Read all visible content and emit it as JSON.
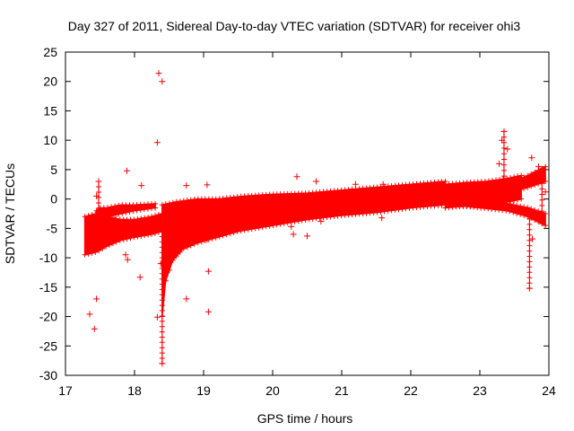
{
  "chart_data": {
    "type": "scatter",
    "title": "Day 327 of 2011, Sidereal Day-to-day VTEC variation (SDTVAR) for receiver ohi3",
    "xlabel": "GPS time / hours",
    "ylabel": "SDTVAR / TECUs",
    "xlim": [
      17,
      24
    ],
    "ylim": [
      -30,
      25
    ],
    "xticks": [
      "17",
      "18",
      "19",
      "20",
      "21",
      "22",
      "23",
      "24"
    ],
    "yticks": [
      "25",
      "20",
      "15",
      "10",
      "5",
      "0",
      "-5",
      "-10",
      "-15",
      "-20",
      "-25",
      "-30"
    ],
    "grid": false,
    "legend": "none",
    "marker": "plus",
    "color": "#ff0000",
    "series": [
      {
        "bands": [
          {
            "x": [
              17.28,
              17.45,
              17.6,
              17.8,
              18.0,
              18.25,
              18.4
            ],
            "y_low": [
              -9.5,
              -9.0,
              -8.0,
              -7.0,
              -6.5,
              -6.0,
              -5.5
            ],
            "y_high": [
              -3.0,
              -2.5,
              -3.0,
              -3.5,
              -3.5,
              -3.0,
              -2.5
            ]
          },
          {
            "x": [
              17.45,
              17.5,
              17.6,
              17.8,
              18.0,
              18.3
            ],
            "y_low": [
              -5.5,
              -3.5,
              -3.0,
              -2.5,
              -2.0,
              -1.5
            ],
            "y_high": [
              -2.0,
              -1.5,
              -1.5,
              -1.0,
              -1.0,
              -0.8
            ]
          },
          {
            "x": [
              18.4,
              18.45,
              18.55,
              18.7,
              18.9,
              19.2,
              19.5,
              20.0,
              20.5,
              21.0,
              21.5,
              22.0,
              22.5
            ],
            "y_low": [
              -20.0,
              -14.0,
              -10.5,
              -8.5,
              -7.5,
              -6.5,
              -5.5,
              -4.5,
              -3.5,
              -2.8,
              -2.3,
              -1.5,
              -1.0
            ],
            "y_high": [
              -4.0,
              -3.2,
              -2.8,
              -2.5,
              -2.2,
              -1.8,
              -1.5,
              -1.0,
              -0.5,
              0.0,
              0.5,
              1.2,
              2.0
            ]
          },
          {
            "x": [
              18.4,
              18.6,
              18.9,
              19.2,
              19.6,
              20.0,
              20.5,
              21.0,
              21.5,
              22.0,
              22.5
            ],
            "y_low": [
              -3.5,
              -3.0,
              -2.5,
              -2.0,
              -1.5,
              -1.2,
              -1.0,
              -0.5,
              0.0,
              0.5,
              1.0
            ],
            "y_high": [
              -1.0,
              -0.5,
              0.0,
              0.0,
              0.5,
              0.8,
              1.0,
              1.5,
              2.0,
              2.5,
              3.0
            ]
          },
          {
            "x": [
              22.5,
              22.8,
              23.1,
              23.4,
              23.6
            ],
            "y_low": [
              -1.5,
              -1.2,
              -1.0,
              -0.5,
              0.0
            ],
            "y_high": [
              2.5,
              2.8,
              3.0,
              3.5,
              4.0
            ]
          },
          {
            "x": [
              22.5,
              22.8,
              23.1,
              23.4,
              23.7,
              23.95
            ],
            "y_low": [
              -0.5,
              -0.5,
              -0.3,
              1.0,
              2.0,
              3.0
            ],
            "y_high": [
              0.5,
              0.8,
              1.0,
              2.5,
              4.0,
              5.5
            ]
          },
          {
            "x": [
              22.6,
              23.0,
              23.4,
              23.7,
              23.95
            ],
            "y_low": [
              -1.0,
              -1.5,
              -2.0,
              -3.0,
              -4.5
            ],
            "y_high": [
              0.0,
              -0.3,
              -0.8,
              -1.5,
              -2.5
            ]
          }
        ],
        "outliers": [
          {
            "x": 18.35,
            "y": 21.4
          },
          {
            "x": 18.4,
            "y": 20.0
          },
          {
            "x": 18.33,
            "y": 9.6
          },
          {
            "x": 17.89,
            "y": 4.8
          },
          {
            "x": 18.1,
            "y": 2.3
          },
          {
            "x": 18.75,
            "y": 2.3
          },
          {
            "x": 19.05,
            "y": 2.4
          },
          {
            "x": 17.35,
            "y": -19.6
          },
          {
            "x": 17.42,
            "y": -22.1
          },
          {
            "x": 17.45,
            "y": -17.0
          },
          {
            "x": 18.08,
            "y": -13.3
          },
          {
            "x": 18.33,
            "y": -20.1
          },
          {
            "x": 18.4,
            "y": -28.0
          },
          {
            "x": 18.75,
            "y": -17.0
          },
          {
            "x": 19.07,
            "y": -19.2
          },
          {
            "x": 19.07,
            "y": -12.3
          },
          {
            "x": 17.87,
            "y": -9.5
          },
          {
            "x": 17.9,
            "y": -10.3
          },
          {
            "x": 18.38,
            "y": -11.0
          },
          {
            "x": 23.72,
            "y": -15.2
          },
          {
            "x": 23.76,
            "y": -6.8
          },
          {
            "x": 20.5,
            "y": -6.3
          },
          {
            "x": 20.3,
            "y": -6.0
          },
          {
            "x": 20.7,
            "y": -3.8
          },
          {
            "x": 19.05,
            "y": -6.9
          },
          {
            "x": 23.35,
            "y": 11.5
          },
          {
            "x": 23.32,
            "y": 10.0
          },
          {
            "x": 23.4,
            "y": 8.5
          },
          {
            "x": 23.75,
            "y": 7.0
          },
          {
            "x": 23.85,
            "y": 5.5
          },
          {
            "x": 23.28,
            "y": 6.0
          },
          {
            "x": 23.9,
            "y": 4.0
          },
          {
            "x": 23.95,
            "y": 1.2
          },
          {
            "x": 17.45,
            "y": 0.5
          },
          {
            "x": 17.48,
            "y": 3.0
          },
          {
            "x": 20.35,
            "y": 3.8
          },
          {
            "x": 20.63,
            "y": 3.0
          },
          {
            "x": 21.2,
            "y": 2.5
          },
          {
            "x": 21.6,
            "y": 2.5
          },
          {
            "x": 21.58,
            "y": -3.2
          },
          {
            "x": 20.27,
            "y": -4.7
          },
          {
            "x": 18.6,
            "y": -1.0
          }
        ],
        "vertical_segments": [
          {
            "x": 17.48,
            "y_low": -8.0,
            "y_high": 3.0
          },
          {
            "x": 18.4,
            "y_low": -28.0,
            "y_high": -5.5
          },
          {
            "x": 23.35,
            "y_low": 2.0,
            "y_high": 11.5
          },
          {
            "x": 23.72,
            "y_low": -15.2,
            "y_high": -2.5
          },
          {
            "x": 23.9,
            "y_low": -3.0,
            "y_high": 5.5
          }
        ]
      }
    ]
  }
}
